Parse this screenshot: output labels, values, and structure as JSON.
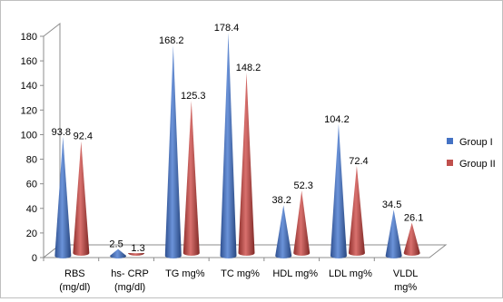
{
  "chart_data": {
    "type": "bar",
    "style": "3d-cone",
    "title": "",
    "xlabel": "",
    "ylabel": "",
    "ylim": [
      0,
      180
    ],
    "yticks": [
      0,
      20,
      40,
      60,
      80,
      100,
      120,
      140,
      160,
      180
    ],
    "grid": false,
    "legend_position": "right",
    "categories": [
      [
        "RBS",
        "(mg/dl)"
      ],
      [
        "hs- CRP",
        "(mg/dl)"
      ],
      [
        "TG mg%"
      ],
      [
        "TC mg%"
      ],
      [
        "HDL mg%"
      ],
      [
        "LDL mg%"
      ],
      [
        "VLDL",
        "mg%"
      ]
    ],
    "series": [
      {
        "name": "Group I",
        "color": "#4472C4",
        "values": [
          93.8,
          2.5,
          168.2,
          178.4,
          38.2,
          104.2,
          34.5
        ],
        "labels": [
          "93.8",
          "2.5",
          "168.2",
          "178.4",
          "38.2",
          "104.2",
          "34.5"
        ]
      },
      {
        "name": "Group II",
        "color": "#C0504D",
        "values": [
          92.4,
          1.3,
          125.3,
          148.2,
          52.3,
          72.4,
          26.1
        ],
        "labels": [
          "92.4",
          "1.3",
          "125.3",
          "148.2",
          "52.3",
          "72.4",
          "26.1"
        ]
      }
    ]
  }
}
